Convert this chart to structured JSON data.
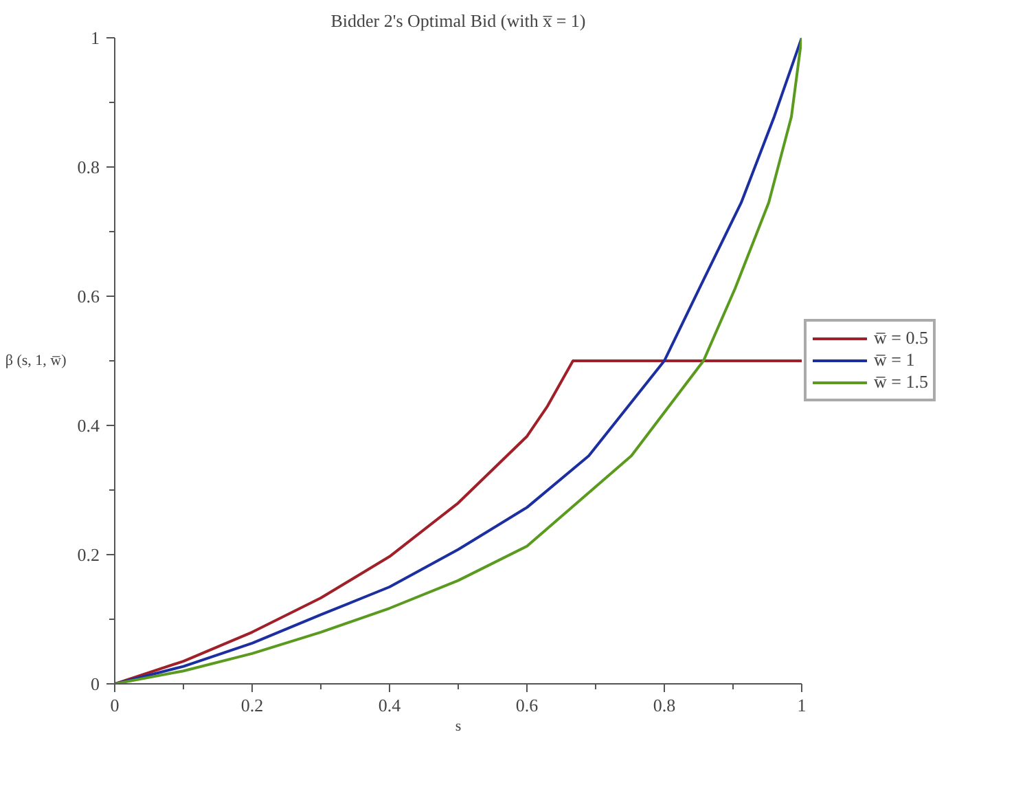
{
  "chart_data": {
    "type": "line",
    "title": "Bidder 2's Optimal Bid (with x̅ = 1)",
    "xlabel": "s",
    "ylabel": "β (s, 1, w̅)",
    "xlim": [
      0,
      1
    ],
    "ylim": [
      0,
      1
    ],
    "xticks": [
      0,
      0.2,
      0.4,
      0.6,
      0.8,
      1
    ],
    "yticks": [
      0,
      0.2,
      0.4,
      0.6,
      0.8,
      1
    ],
    "grid": false,
    "legend": "right",
    "marker": "none",
    "line_style": "solid",
    "series": [
      {
        "name": "w̅ = 0.5",
        "color": "#a0202a",
        "x": [
          0,
          0.1,
          0.2,
          0.3,
          0.4,
          0.5,
          0.6,
          0.63,
          0.667,
          0.75,
          0.9,
          1
        ],
        "values": [
          0,
          0.035,
          0.08,
          0.133,
          0.197,
          0.28,
          0.383,
          0.43,
          0.5,
          0.5,
          0.5,
          0.5
        ]
      },
      {
        "name": "w̅ = 1",
        "color": "#1c2fa0",
        "x": [
          0,
          0.1,
          0.2,
          0.3,
          0.4,
          0.5,
          0.6,
          0.69,
          0.8,
          0.851,
          0.912,
          0.96,
          1
        ],
        "values": [
          0,
          0.027,
          0.063,
          0.107,
          0.15,
          0.208,
          0.273,
          0.353,
          0.5,
          0.612,
          0.745,
          0.878,
          1
        ]
      },
      {
        "name": "w̅ = 1.5",
        "color": "#5a9a1e",
        "x": [
          0,
          0.1,
          0.2,
          0.3,
          0.4,
          0.5,
          0.6,
          0.752,
          0.857,
          0.903,
          0.952,
          0.985,
          1
        ],
        "values": [
          0,
          0.02,
          0.047,
          0.08,
          0.117,
          0.16,
          0.213,
          0.353,
          0.5,
          0.612,
          0.745,
          0.878,
          1
        ]
      }
    ]
  }
}
